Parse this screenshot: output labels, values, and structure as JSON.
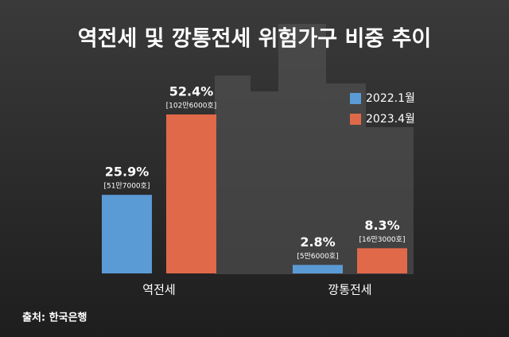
{
  "chart_data": {
    "type": "bar",
    "title": "역전세 및 깡통전세 위험가구 비중 추이",
    "categories": [
      "역전세",
      "깡통전세"
    ],
    "series": [
      {
        "name": "2022.1월",
        "color": "#5b9bd5",
        "values": [
          25.9,
          2.8
        ],
        "value_labels": [
          "25.9%",
          "2.8%"
        ],
        "count_labels": [
          "[51만7000호]",
          "[5만6000호]"
        ]
      },
      {
        "name": "2023.4월",
        "color": "#e0694a",
        "values": [
          52.4,
          8.3
        ],
        "value_labels": [
          "52.4%",
          "8.3%"
        ],
        "count_labels": [
          "[102만6000호]",
          "[16만3000호]"
        ]
      }
    ],
    "source": "출처: 한국은행"
  }
}
